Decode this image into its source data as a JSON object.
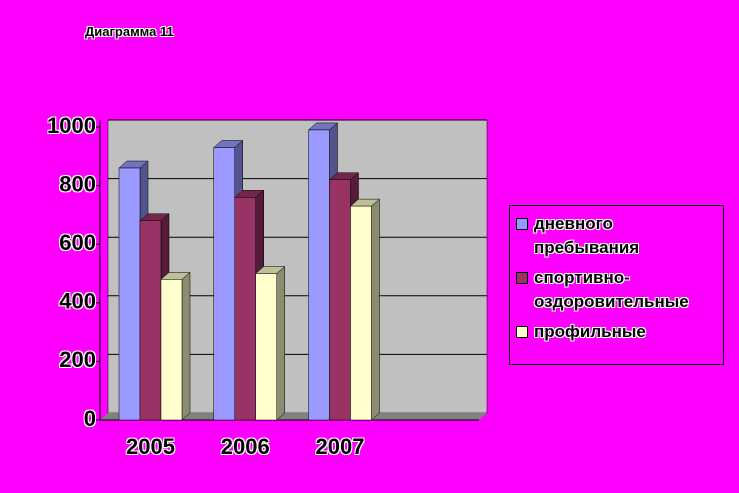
{
  "chart_data": {
    "type": "bar",
    "title": "Диаграмма 11",
    "categories": [
      "2005",
      "2006",
      "2007",
      null
    ],
    "series": [
      {
        "name": "дневного пребывания",
        "color": "#9999ff",
        "values": [
          860,
          930,
          990,
          null
        ]
      },
      {
        "name": "спортивно-оздоровительные",
        "color": "#993366",
        "values": [
          680,
          760,
          820,
          null
        ]
      },
      {
        "name": "профильные",
        "color": "#ffffcc",
        "values": [
          480,
          500,
          730,
          null
        ]
      }
    ],
    "ylim": [
      0,
      1000
    ],
    "yticks": [
      0,
      200,
      400,
      600,
      800,
      1000
    ],
    "grid": true,
    "legend": "right"
  }
}
